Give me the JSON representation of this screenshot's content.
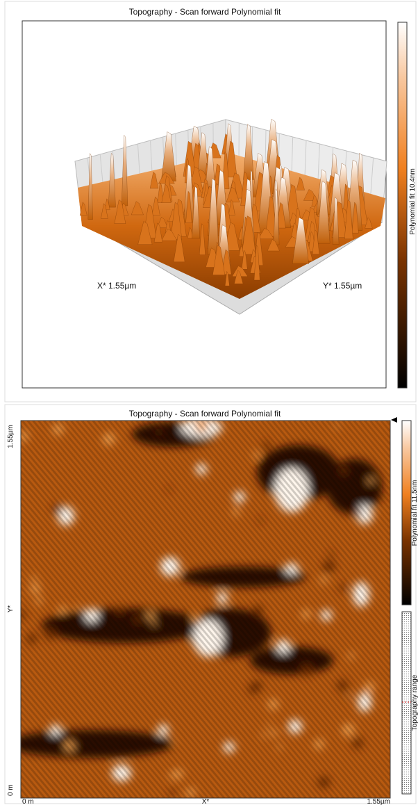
{
  "panels": [
    {
      "title": "Topography - Scan forward   Polynomial fit",
      "x_label": "X* 1.55µm",
      "y_label": "Y* 1.55µm",
      "colorbar_label": "Polynomial fit 10.4nm"
    },
    {
      "title": "Topography - Scan forward   Polynomial fit",
      "y_axis": {
        "top": "1.55µm",
        "middle": "Y*",
        "bottom": "0 m"
      },
      "x_axis": {
        "left": "0 m",
        "middle": "X*",
        "right": "1.55µm"
      },
      "colorbar_label": "Polynomial fit 11.5nm",
      "range_label": "Topography range"
    }
  ]
}
